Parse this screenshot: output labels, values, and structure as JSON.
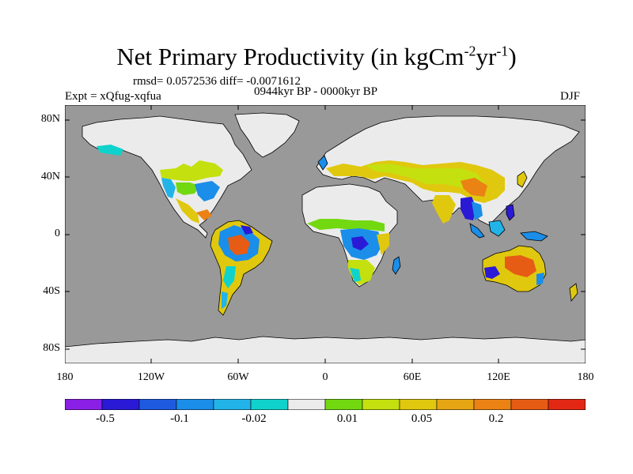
{
  "title": {
    "main": "Net Primary Productivity (in kgCm",
    "sup1": "-2",
    "mid": "yr",
    "sup2": "-1",
    "end": ")"
  },
  "stats": {
    "rmsd_label": "rmsd= 0.0572536 diff= -0.0071612"
  },
  "period": "0944kyr BP - 0000kyr BP",
  "experiment": "Expt = xQfug-xqfua",
  "season": "DJF",
  "axes": {
    "y_ticks": [
      "80N",
      "40N",
      "0",
      "40S",
      "80S"
    ],
    "x_ticks": [
      "180",
      "120W",
      "60W",
      "0",
      "60E",
      "120E",
      "180"
    ]
  },
  "colorbar": {
    "colors": [
      "#8a1fe6",
      "#2a1ad6",
      "#1e5ae0",
      "#1a8ee8",
      "#22b4e8",
      "#10d2cc",
      "#ebebeb",
      "#72d810",
      "#c4e00e",
      "#e0c80e",
      "#e6a614",
      "#ea8214",
      "#e65c14",
      "#e22814"
    ],
    "labels": [
      "-0.5",
      "-0.1",
      "-0.02",
      "0.01",
      "0.05",
      "0.2"
    ]
  },
  "map_colors": {
    "ocean": "#999999",
    "zero_change": "#ebebeb",
    "coast": "#000000"
  }
}
